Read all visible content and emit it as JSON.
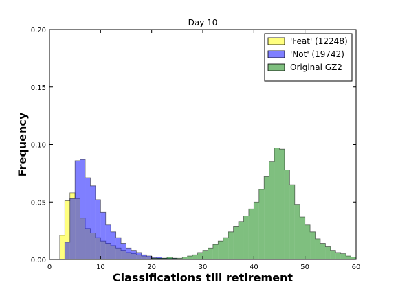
{
  "chart_data": {
    "type": "histogram",
    "title": "Day 10",
    "xlabel": "Classifications till retirement",
    "ylabel": "Frequency",
    "xlim": [
      0,
      60
    ],
    "ylim": [
      0,
      0.2
    ],
    "xticks": [
      "0",
      "10",
      "20",
      "30",
      "40",
      "50",
      "60"
    ],
    "yticks": [
      "0.00",
      "0.05",
      "0.10",
      "0.15",
      "0.20"
    ],
    "grid": false,
    "legend_position": "top-right",
    "bin_width": 1,
    "series": [
      {
        "name": "'Feat' (12248)",
        "color": "#ffff00",
        "alpha": 0.5,
        "bin_start": 2,
        "values": [
          0.021,
          0.051,
          0.058,
          0.053,
          0.036,
          0.027,
          0.023,
          0.019,
          0.016,
          0.014,
          0.012,
          0.01,
          0.008,
          0.006,
          0.005,
          0.004,
          0.003,
          0.002,
          0.002,
          0.001
        ]
      },
      {
        "name": "'Not' (19742)",
        "color": "#0000ff",
        "alpha": 0.5,
        "bin_start": 3,
        "values": [
          0.015,
          0.053,
          0.086,
          0.087,
          0.071,
          0.064,
          0.052,
          0.041,
          0.03,
          0.024,
          0.019,
          0.014,
          0.01,
          0.008,
          0.006,
          0.004,
          0.003,
          0.002,
          0.002,
          0.001,
          0.001,
          0.001
        ]
      },
      {
        "name": "Original GZ2",
        "color": "#008000",
        "alpha": 0.5,
        "bin_start": 20,
        "values": [
          0.001,
          0.001,
          0.001,
          0.002,
          0.001,
          0.001,
          0.002,
          0.003,
          0.004,
          0.006,
          0.008,
          0.01,
          0.013,
          0.016,
          0.019,
          0.024,
          0.029,
          0.033,
          0.038,
          0.044,
          0.05,
          0.061,
          0.072,
          0.085,
          0.097,
          0.096,
          0.078,
          0.065,
          0.048,
          0.037,
          0.03,
          0.024,
          0.018,
          0.014,
          0.011,
          0.008,
          0.006,
          0.005,
          0.003,
          0.002
        ]
      }
    ]
  }
}
